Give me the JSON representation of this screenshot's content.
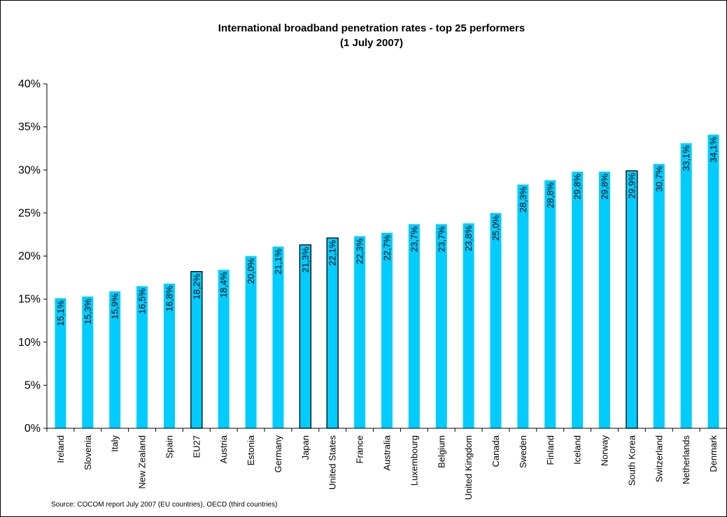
{
  "chart_data": {
    "type": "bar",
    "title": "International broadband penetration rates - top 25 performers",
    "subtitle": "(1 July 2007)",
    "xlabel": "",
    "ylabel": "",
    "ylim": [
      0,
      40
    ],
    "y_ticks": [
      "0%",
      "5%",
      "10%",
      "15%",
      "20%",
      "25%",
      "30%",
      "35%",
      "40%"
    ],
    "categories": [
      "Ireland",
      "Slovenia",
      "Italy",
      "New Zealand",
      "Spain",
      "EU27",
      "Austria",
      "Estonia",
      "Germany",
      "Japan",
      "United States",
      "France",
      "Australia",
      "Luxembourg",
      "Belgium",
      "United Kingdom",
      "Canada",
      "Sweden",
      "Finland",
      "Iceland",
      "Norway",
      "South Korea",
      "Switzerland",
      "Netherlands",
      "Denmark"
    ],
    "values": [
      15.1,
      15.3,
      15.9,
      16.5,
      16.8,
      18.2,
      18.4,
      20.0,
      21.1,
      21.3,
      22.1,
      22.3,
      22.7,
      23.7,
      23.7,
      23.8,
      25.0,
      28.3,
      28.8,
      29.8,
      29.8,
      29.9,
      30.7,
      33.1,
      34.1
    ],
    "data_labels": [
      "15,1%",
      "15,3%",
      "15,9%",
      "16,5%",
      "16,8%",
      "18,2%",
      "18,4%",
      "20,0%",
      "21,1%",
      "21,3%",
      "22,1%",
      "22,3%",
      "22,7%",
      "23,7%",
      "23,7%",
      "23,8%",
      "25,0%",
      "28,3%",
      "28,8%",
      "29,8%",
      "29,8%",
      "29,9%",
      "30,7%",
      "33,1%",
      "34,1%"
    ],
    "highlighted": [
      "EU27",
      "Japan",
      "United States",
      "South Korea"
    ],
    "bar_color": "#00CCFF",
    "highlight_border_color": "#000000",
    "grid": false,
    "source_note": "Source: COCOM  report July 2007 (EU countries), OECD (third countries)"
  }
}
